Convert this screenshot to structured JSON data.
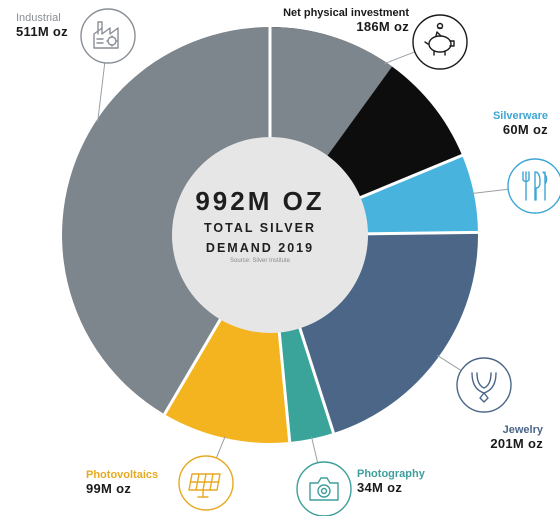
{
  "colors": {
    "Industrial": "#7d858d",
    "Net physical investment": "#0d0d0d",
    "Silverware": "#48b3dc",
    "Jewelry": "#4b6687",
    "Photography": "#3aa39a",
    "Photovoltaics": "#f4b41f",
    "label_gold": "#e7a922",
    "label_blue": "#3fa6d4",
    "label_teal": "#3e9f9b",
    "label_gray": "#8a8f96",
    "label_dark": "#1a1a1a",
    "hole": "#e6e6e6",
    "icon_stroke": "#4b6687"
  },
  "chart_data": {
    "type": "pie",
    "donut": true,
    "center": {
      "value": "992M OZ",
      "label_line1": "TOTAL SILVER",
      "label_line2": "DEMAND 2019",
      "source": "Source: Silver Institute"
    },
    "unit": "M oz",
    "total": 992,
    "slices": [
      {
        "name": "Net physical investment",
        "value": 186,
        "value_label": "186M oz",
        "icon": "piggy-bank-icon"
      },
      {
        "name": "Silverware",
        "value": 60,
        "value_label": "60M oz",
        "icon": "cutlery-icon"
      },
      {
        "name": "Jewelry",
        "value": 201,
        "value_label": "201M oz",
        "icon": "necklace-icon"
      },
      {
        "name": "Photography",
        "value": 34,
        "value_label": "34M oz",
        "icon": "camera-icon"
      },
      {
        "name": "Photovoltaics",
        "value": 99,
        "value_label": "99M oz",
        "icon": "solar-panel-icon"
      },
      {
        "name": "Industrial",
        "value": 511,
        "value_label": "511M oz",
        "icon": "factory-icon"
      }
    ]
  }
}
